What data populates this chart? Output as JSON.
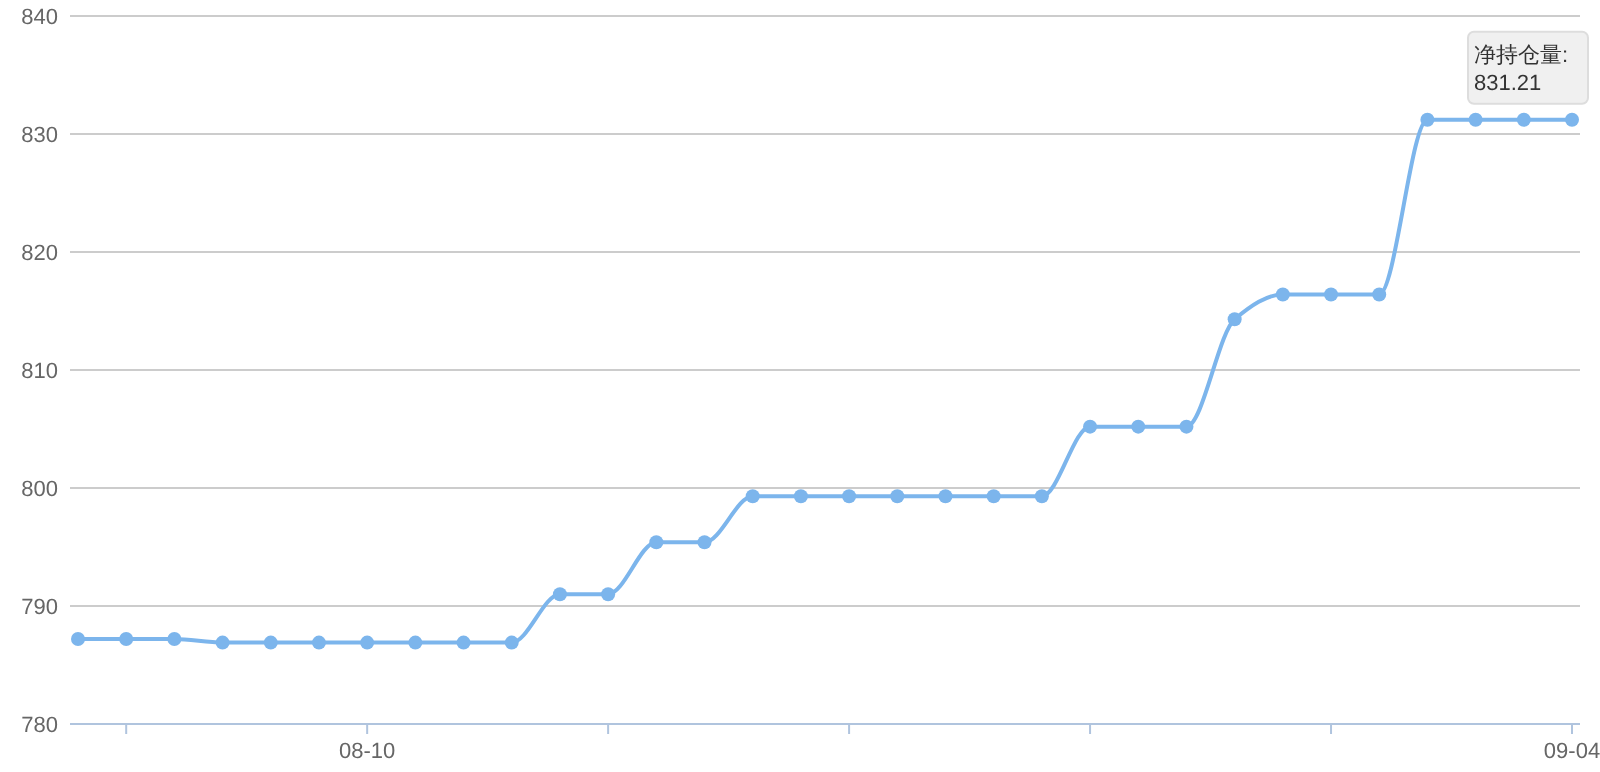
{
  "chart_data": {
    "type": "line",
    "categories": [
      null,
      null,
      null,
      null,
      null,
      null,
      "08-10",
      null,
      null,
      null,
      null,
      null,
      null,
      null,
      null,
      null,
      null,
      null,
      null,
      null,
      null,
      null,
      null,
      null,
      null,
      null,
      null,
      null,
      null,
      null,
      null,
      "09-04"
    ],
    "series": [
      {
        "color": "#7cb5ec",
        "values": [
          787.2,
          787.2,
          787.2,
          786.9,
          786.9,
          786.9,
          786.9,
          786.9,
          786.9,
          786.9,
          791.0,
          791.0,
          795.4,
          795.4,
          799.3,
          799.3,
          799.3,
          799.3,
          799.3,
          799.3,
          799.3,
          805.2,
          805.2,
          805.2,
          814.3,
          816.4,
          816.4,
          816.4,
          831.21,
          831.21,
          831.21,
          831.21
        ]
      }
    ],
    "ylim": [
      780,
      840
    ],
    "yticks": [
      780,
      790,
      800,
      810,
      820,
      830,
      840
    ],
    "grid": "y",
    "marker": "circle",
    "annotations": [
      {
        "text": "净持仓量:\n831.21",
        "x": "09-04",
        "y": 831.21
      }
    ]
  }
}
